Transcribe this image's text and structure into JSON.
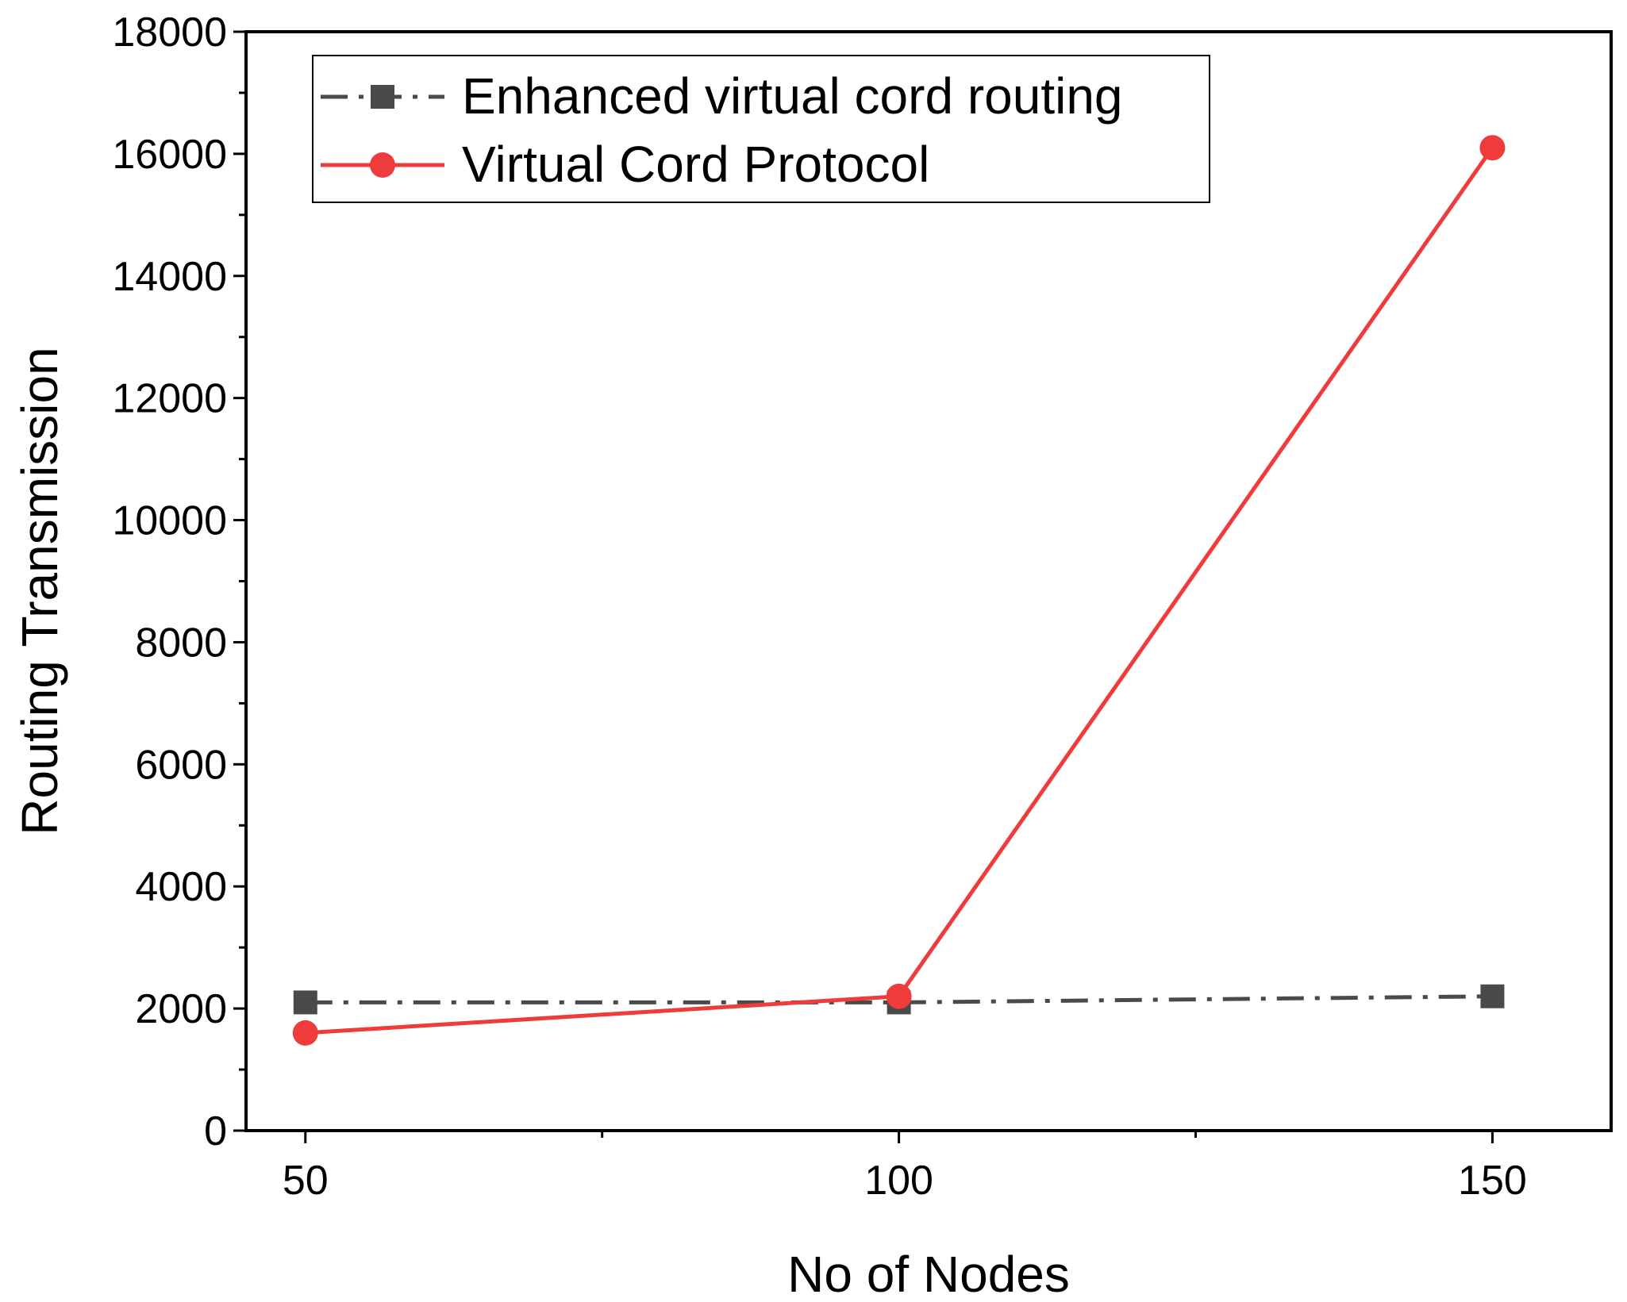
{
  "chart_data": {
    "type": "line",
    "title": "",
    "xlabel": "No of Nodes",
    "ylabel": "Routing Transmission",
    "x": [
      50,
      100,
      150
    ],
    "xlim": [
      45,
      160
    ],
    "ylim": [
      0,
      18000
    ],
    "x_ticks": [
      "50",
      "100",
      "150"
    ],
    "y_ticks": [
      "0",
      "2000",
      "4000",
      "6000",
      "8000",
      "10000",
      "12000",
      "14000",
      "16000",
      "18000"
    ],
    "grid": false,
    "legend_position": "top-left",
    "series": [
      {
        "name": "Enhanced virtual cord routing",
        "values": [
          2100,
          2100,
          2200
        ],
        "color": "#4a4a4a",
        "line_style": "dash-dot",
        "marker": "square"
      },
      {
        "name": "Virtual Cord Protocol",
        "values": [
          1600,
          2200,
          16100
        ],
        "color": "#ef3b3b",
        "line_style": "solid",
        "marker": "circle"
      }
    ]
  }
}
